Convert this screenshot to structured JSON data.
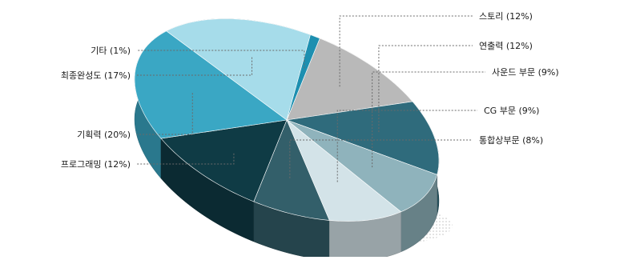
{
  "chart_data": {
    "type": "pie",
    "title": "",
    "three_d": true,
    "legend": "none",
    "slices": [
      {
        "label": "스토리 (12%)",
        "value": 12,
        "color": "#b9b9b9"
      },
      {
        "label": "연출력 (12%)",
        "value": 12,
        "color": "#2f6b7c"
      },
      {
        "label": "사운드 부문 (9%)",
        "value": 9,
        "color": "#8fb3bc"
      },
      {
        "label": "CG 부문 (9%)",
        "value": 9,
        "color": "#d3e3e8"
      },
      {
        "label": "통합상부문 (8%)",
        "value": 8,
        "color": "#335f6a"
      },
      {
        "label": "프로그래밍 (12%)",
        "value": 12,
        "color": "#0f3b45"
      },
      {
        "label": "기획력 (20%)",
        "value": 20,
        "color": "#3aa7c4"
      },
      {
        "label": "최종완성도 (17%)",
        "value": 17,
        "color": "#a6dcea"
      },
      {
        "label": "기타 (1%)",
        "value": 1,
        "color": "#1d8fb0"
      }
    ]
  }
}
